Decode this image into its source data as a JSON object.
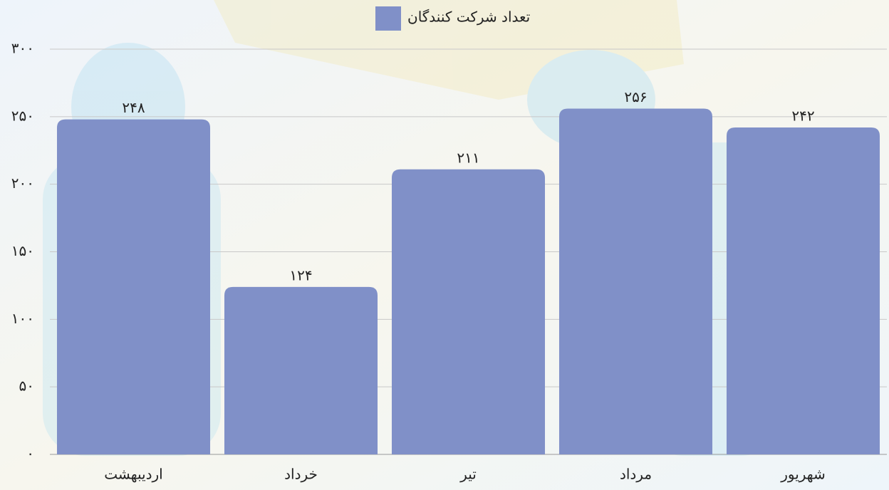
{
  "chart_data": {
    "type": "bar",
    "categories": [
      "اردیبهشت",
      "خرداد",
      "تیر",
      "مرداد",
      "شهریور"
    ],
    "series": [
      {
        "name": "تعداد شرکت کنندگان",
        "color": "#8090c8",
        "values": [
          248,
          124,
          211,
          256,
          242
        ],
        "value_labels": [
          "۲۴۸",
          "۱۲۴",
          "۲۱۱",
          "۲۵۶",
          "۲۴۲"
        ]
      }
    ],
    "ylim": [
      0,
      300
    ],
    "yticks": [
      {
        "value": 0,
        "label": "۰"
      },
      {
        "value": 50,
        "label": "۵۰"
      },
      {
        "value": 100,
        "label": "۱۰۰"
      },
      {
        "value": 150,
        "label": "۱۵۰"
      },
      {
        "value": 200,
        "label": "۲۰۰"
      },
      {
        "value": 250,
        "label": "۲۵۰"
      },
      {
        "value": 300,
        "label": "۳۰۰"
      }
    ],
    "grid": true
  }
}
